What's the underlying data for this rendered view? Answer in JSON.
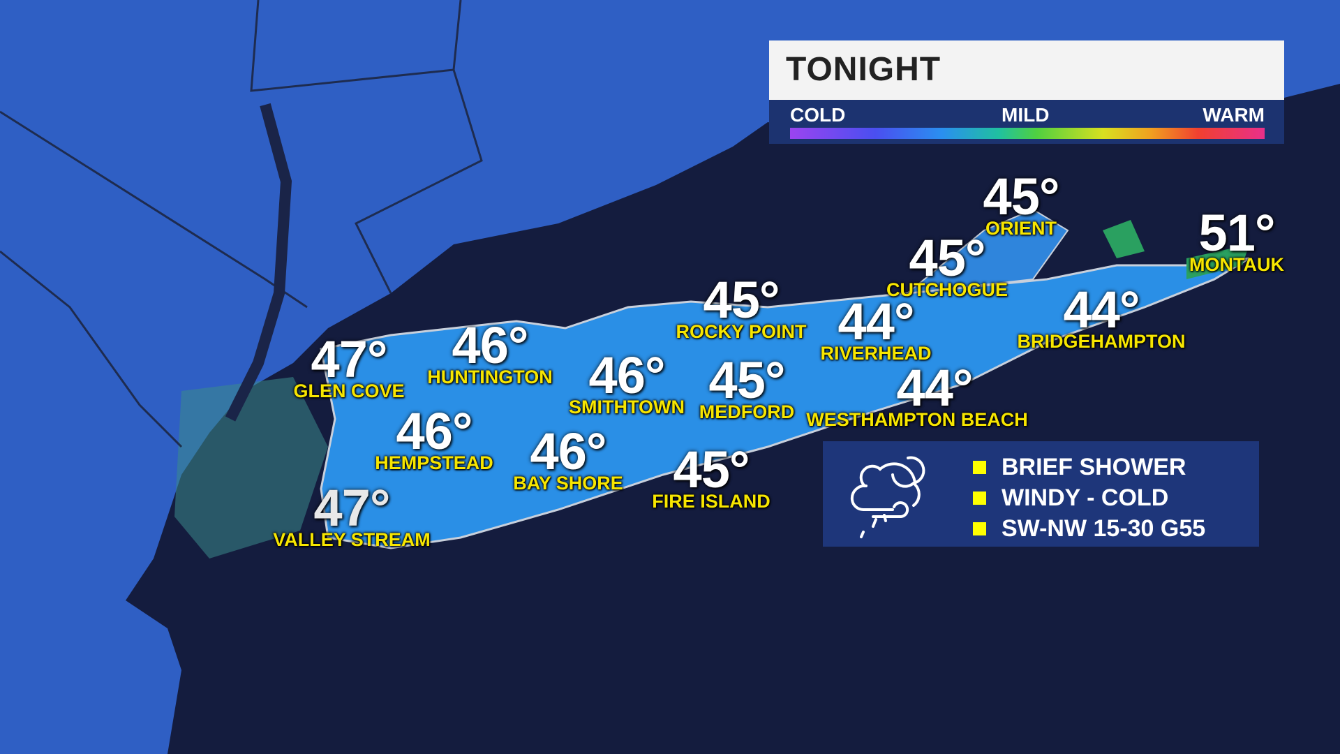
{
  "header": {
    "title": "TONIGHT"
  },
  "scale": {
    "cold": "COLD",
    "mild": "MILD",
    "warm": "WARM"
  },
  "cities": [
    {
      "name": "GLEN COVE",
      "temp": "47°"
    },
    {
      "name": "HUNTINGTON",
      "temp": "46°"
    },
    {
      "name": "SMITHTOWN",
      "temp": "46°"
    },
    {
      "name": "HEMPSTEAD",
      "temp": "46°"
    },
    {
      "name": "BAY SHORE",
      "temp": "46°"
    },
    {
      "name": "VALLEY STREAM",
      "temp": "47°"
    },
    {
      "name": "ROCKY POINT",
      "temp": "45°"
    },
    {
      "name": "MEDFORD",
      "temp": "45°"
    },
    {
      "name": "FIRE ISLAND",
      "temp": "45°"
    },
    {
      "name": "RIVERHEAD",
      "temp": "44°"
    },
    {
      "name": "WESTHAMPTON BEACH",
      "temp": "44°"
    },
    {
      "name": "CUTCHOGUE",
      "temp": "45°"
    },
    {
      "name": "ORIENT",
      "temp": "45°"
    },
    {
      "name": "BRIDGEHAMPTON",
      "temp": "44°"
    },
    {
      "name": "MONTAUK",
      "temp": "51°"
    }
  ],
  "legend": {
    "icon": "night-cloud-shower-wind-icon",
    "items": [
      "BRIEF SHOWER",
      "WINDY - COLD",
      "SW-NW 15-30 G55"
    ],
    "bullet_color": "#ffff00"
  },
  "colors": {
    "ocean": "#141c3e",
    "land": "#2f62c8",
    "long_island": "#2a8fe6",
    "panel": "#1e367a"
  }
}
